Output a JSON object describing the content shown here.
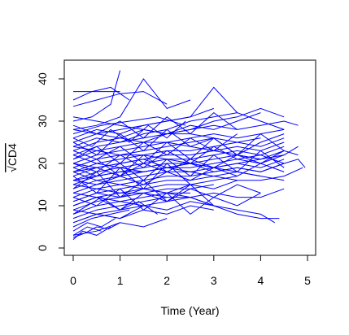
{
  "chart_data": {
    "type": "line",
    "title": "",
    "xlabel": "Time (Year)",
    "ylabel": "√CD4",
    "xlim": [
      0,
      5
    ],
    "ylim": [
      0,
      40
    ],
    "x_ticks": [
      "0",
      "1",
      "2",
      "3",
      "4",
      "5"
    ],
    "y_ticks": [
      "0",
      "10",
      "20",
      "30",
      "40"
    ],
    "grid": false,
    "legend": "none",
    "line_color": "#0000ff",
    "series": [
      {
        "x": [
          0.0,
          0.3,
          0.7,
          1.0
        ],
        "y": [
          37,
          37,
          37,
          37
        ]
      },
      {
        "x": [
          0.0,
          0.5,
          1.0,
          1.5,
          2.0
        ],
        "y": [
          33.5,
          35,
          36.5,
          37,
          34
        ]
      },
      {
        "x": [
          0.0,
          0.4,
          0.8,
          1.2
        ],
        "y": [
          35,
          37,
          38,
          35
        ]
      },
      {
        "x": [
          0.0,
          0.4,
          0.8,
          1.0
        ],
        "y": [
          30,
          31,
          34,
          42
        ]
      },
      {
        "x": [
          0.0,
          0.5,
          1.0,
          1.5,
          2.0,
          2.5
        ],
        "y": [
          28,
          29,
          31,
          40,
          33,
          35
        ]
      },
      {
        "x": [
          0.0,
          0.6,
          1.2,
          1.8,
          2.4
        ],
        "y": [
          27,
          29,
          30,
          31,
          29
        ]
      },
      {
        "x": [
          0.0,
          0.5,
          1.0,
          1.5,
          2.0,
          2.5,
          3.0
        ],
        "y": [
          25,
          27,
          28,
          29,
          30,
          31,
          33
        ]
      },
      {
        "x": [
          0.0,
          0.5,
          1.0,
          1.5,
          2.0,
          2.5,
          3.0,
          3.5
        ],
        "y": [
          26,
          28,
          27,
          29,
          30,
          31,
          38,
          32
        ]
      },
      {
        "x": [
          0.0,
          0.5,
          1.0,
          1.5,
          2.0,
          2.5,
          3.0,
          3.5,
          4.0,
          4.5
        ],
        "y": [
          24,
          26,
          25,
          27,
          28,
          30,
          31,
          32,
          30,
          28
        ]
      },
      {
        "x": [
          0.0,
          0.5,
          1.0,
          1.5,
          2.0,
          2.5,
          3.0,
          3.5,
          4.0,
          4.5
        ],
        "y": [
          22,
          24,
          25,
          26,
          27,
          28,
          30,
          31,
          33,
          31
        ]
      },
      {
        "x": [
          0.0,
          0.5,
          1.0,
          1.5,
          2.0,
          2.5,
          3.0,
          3.5,
          4.0
        ],
        "y": [
          23,
          25,
          26,
          28,
          27,
          29,
          28,
          30,
          32
        ]
      },
      {
        "x": [
          0.0,
          0.5,
          1.0,
          1.5,
          2.0,
          2.5,
          3.0,
          3.5,
          4.0,
          4.5,
          4.8
        ],
        "y": [
          21,
          23,
          24,
          25,
          27,
          28,
          29,
          28,
          29,
          30,
          29
        ]
      },
      {
        "x": [
          0.0,
          0.5,
          1.0,
          1.5,
          2.0,
          2.5,
          3.0,
          3.5,
          4.0,
          4.5
        ],
        "y": [
          20,
          22,
          23,
          24,
          25,
          26,
          27,
          26,
          27,
          28
        ]
      },
      {
        "x": [
          0.0,
          0.5,
          1.0,
          1.5,
          2.0,
          2.5,
          3.0,
          3.5,
          4.0
        ],
        "y": [
          19,
          21,
          22,
          23,
          24,
          25,
          26,
          25,
          26
        ]
      },
      {
        "x": [
          0.0,
          0.5,
          1.0,
          1.5,
          2.0,
          2.5,
          3.0,
          3.5,
          4.0,
          4.5
        ],
        "y": [
          18,
          20,
          21,
          22,
          23,
          23,
          24,
          25,
          24,
          26
        ]
      },
      {
        "x": [
          0.0,
          0.5,
          1.0,
          1.5,
          2.0,
          2.5,
          3.0,
          3.5,
          4.0,
          4.5
        ],
        "y": [
          17,
          19,
          20,
          21,
          22,
          22,
          23,
          24,
          23,
          25
        ]
      },
      {
        "x": [
          0.0,
          0.5,
          1.0,
          1.5,
          2.0,
          2.5,
          3.0,
          3.5,
          4.0,
          4.5
        ],
        "y": [
          16,
          18,
          19,
          20,
          21,
          21,
          22,
          23,
          22,
          24
        ]
      },
      {
        "x": [
          0.0,
          0.5,
          1.0,
          1.5,
          2.0,
          2.5,
          3.0,
          3.5,
          4.0,
          4.5
        ],
        "y": [
          15,
          17,
          18,
          19,
          20,
          20,
          21,
          22,
          21,
          23
        ]
      },
      {
        "x": [
          0.0,
          0.5,
          1.0,
          1.5,
          2.0,
          2.5,
          3.0,
          3.5,
          4.0,
          4.5
        ],
        "y": [
          14,
          16,
          17,
          18,
          19,
          19,
          20,
          21,
          20,
          22
        ]
      },
      {
        "x": [
          0.0,
          0.5,
          1.0,
          1.5,
          2.0,
          2.5,
          3.0,
          3.5,
          4.0,
          4.5
        ],
        "y": [
          13,
          15,
          16,
          17,
          18,
          18,
          19,
          20,
          19,
          21
        ]
      },
      {
        "x": [
          0.0,
          0.5,
          1.0,
          1.5,
          2.0,
          2.5,
          3.0,
          3.5,
          4.0,
          4.5
        ],
        "y": [
          12,
          14,
          15,
          16,
          17,
          17,
          18,
          19,
          18,
          20
        ]
      },
      {
        "x": [
          0.0,
          0.5,
          1.0,
          1.5,
          2.0,
          2.5,
          3.0,
          3.5,
          4.0
        ],
        "y": [
          11,
          13,
          14,
          15,
          16,
          16,
          17,
          18,
          17
        ]
      },
      {
        "x": [
          0.0,
          0.5,
          1.0,
          1.5,
          2.0,
          2.5,
          3.0,
          3.5
        ],
        "y": [
          10,
          12,
          13,
          14,
          15,
          15,
          16,
          17
        ]
      },
      {
        "x": [
          0.0,
          0.5,
          1.0,
          1.5,
          2.0,
          2.5,
          3.0
        ],
        "y": [
          9,
          11,
          12,
          13,
          14,
          14,
          15
        ]
      },
      {
        "x": [
          0.0,
          0.5,
          1.0,
          1.5,
          2.0,
          2.5
        ],
        "y": [
          8,
          10,
          11,
          12,
          13,
          13
        ]
      },
      {
        "x": [
          0.0,
          0.5,
          1.0,
          1.5,
          2.0
        ],
        "y": [
          7,
          9,
          10,
          11,
          12
        ]
      },
      {
        "x": [
          0.0,
          0.5,
          1.0,
          1.5
        ],
        "y": [
          6,
          8,
          9,
          10
        ]
      },
      {
        "x": [
          0.0,
          0.4,
          0.8,
          1.2
        ],
        "y": [
          5,
          7,
          8,
          9
        ]
      },
      {
        "x": [
          0.0,
          0.3,
          0.6,
          0.9
        ],
        "y": [
          4,
          6,
          5,
          7
        ]
      },
      {
        "x": [
          0.0,
          0.3,
          0.6
        ],
        "y": [
          3,
          5,
          4
        ]
      },
      {
        "x": [
          0.0,
          0.2,
          0.5,
          0.8
        ],
        "y": [
          2,
          4,
          3,
          5
        ]
      },
      {
        "x": [
          0.0,
          0.25,
          0.5,
          0.75,
          1.0
        ],
        "y": [
          2.5,
          3.5,
          5,
          4.5,
          6
        ]
      },
      {
        "x": [
          0.0,
          0.5,
          1.0,
          1.5,
          2.0
        ],
        "y": [
          3,
          4,
          6,
          5,
          7
        ]
      },
      {
        "x": [
          0.0,
          0.5,
          1.0,
          1.5,
          2.0,
          2.5,
          3.0
        ],
        "y": [
          9,
          8,
          7,
          10,
          9,
          11,
          10
        ]
      },
      {
        "x": [
          0.0,
          0.5,
          1.0,
          1.5,
          2.0,
          2.5,
          3.0,
          3.5,
          4.0,
          4.3
        ],
        "y": [
          13,
          12,
          11,
          10,
          11,
          12,
          10,
          9,
          8,
          6
        ]
      },
      {
        "x": [
          0.0,
          0.5,
          1.0,
          1.5,
          2.0,
          2.5,
          3.0,
          3.5,
          4.0,
          4.4
        ],
        "y": [
          18,
          16,
          15,
          14,
          13,
          12,
          10,
          8,
          7,
          7
        ]
      },
      {
        "x": [
          0.0,
          0.5,
          1.0,
          1.5,
          2.0,
          2.5,
          3.0,
          3.5,
          4.0,
          4.5,
          4.9
        ],
        "y": [
          20,
          19,
          20,
          21,
          19,
          18,
          17,
          16,
          16,
          17,
          19
        ]
      },
      {
        "x": [
          0.0,
          0.5,
          1.0,
          1.5,
          2.0,
          2.5,
          3.0,
          3.5,
          4.0,
          4.5,
          4.8,
          4.95
        ],
        "y": [
          22,
          20,
          19,
          18,
          19,
          20,
          18,
          19,
          18,
          20,
          21,
          19
        ]
      },
      {
        "x": [
          0.0,
          0.5,
          1.0,
          1.5,
          2.0,
          2.5,
          3.0,
          3.5,
          4.0,
          4.5,
          4.8
        ],
        "y": [
          16,
          17,
          18,
          18,
          19,
          20,
          19,
          20,
          21,
          22,
          24
        ]
      },
      {
        "x": [
          0.0,
          0.5,
          1.0,
          1.5,
          2.0,
          2.5,
          3.0,
          3.5,
          4.0,
          4.5
        ],
        "y": [
          15,
          14,
          13,
          13,
          12,
          12,
          13,
          12,
          12,
          14
        ]
      },
      {
        "x": [
          0.0,
          0.5,
          1.0,
          1.5,
          2.0,
          2.5,
          3.0,
          3.5,
          4.0,
          4.5
        ],
        "y": [
          24,
          23,
          22,
          22,
          21,
          20,
          19,
          18,
          17,
          16
        ]
      },
      {
        "x": [
          0.0,
          0.5,
          1.0,
          1.5,
          2.0,
          2.5,
          3.0,
          3.5,
          4.0
        ],
        "y": [
          28,
          27,
          26,
          25,
          25,
          24,
          23,
          22,
          21
        ]
      },
      {
        "x": [
          0.0,
          0.5,
          1.0,
          1.5,
          2.0,
          2.5,
          3.0
        ],
        "y": [
          31,
          30,
          29,
          28,
          27,
          27,
          26
        ]
      },
      {
        "x": [
          0.0,
          0.5,
          1.0,
          1.5,
          2.0
        ],
        "y": [
          19,
          21,
          17,
          22,
          18
        ]
      },
      {
        "x": [
          0.0,
          0.5,
          1.0,
          1.5,
          2.0,
          2.5,
          3.0
        ],
        "y": [
          14,
          18,
          12,
          16,
          11,
          15,
          10
        ]
      },
      {
        "x": [
          0.0,
          0.5,
          1.0,
          1.5,
          2.0,
          2.5
        ],
        "y": [
          17,
          13,
          19,
          14,
          20,
          15
        ]
      },
      {
        "x": [
          0.0,
          0.5,
          1.0,
          1.5,
          2.0,
          2.5,
          3.0,
          3.5
        ],
        "y": [
          21,
          24,
          20,
          25,
          22,
          26,
          23,
          27
        ]
      },
      {
        "x": [
          0.0,
          0.5,
          1.0,
          1.5,
          2.0,
          2.5,
          3.0,
          3.5,
          4.0
        ],
        "y": [
          12,
          10,
          14,
          9,
          13,
          8,
          12,
          10,
          13
        ]
      },
      {
        "x": [
          0.0,
          0.5,
          1.0,
          1.5,
          2.0,
          2.5,
          3.0,
          3.5,
          4.0,
          4.5
        ],
        "y": [
          25,
          22,
          27,
          23,
          28,
          24,
          26,
          22,
          25,
          27
        ]
      },
      {
        "x": [
          0.0,
          0.5,
          1.0,
          1.5,
          2.0,
          2.5,
          3.0,
          3.5,
          4.0,
          4.5
        ],
        "y": [
          19,
          17,
          20,
          16,
          21,
          17,
          22,
          18,
          23,
          19
        ]
      },
      {
        "x": [
          0.0,
          0.5,
          1.0,
          1.5,
          2.0,
          2.5,
          3.0,
          3.5,
          4.0
        ],
        "y": [
          10,
          12,
          9,
          13,
          11,
          14,
          12,
          15,
          13
        ]
      },
      {
        "x": [
          0.0,
          0.3,
          0.6,
          1.0,
          1.4,
          1.8
        ],
        "y": [
          8,
          10,
          12,
          9,
          11,
          8
        ]
      },
      {
        "x": [
          0.0,
          0.4,
          0.8,
          1.2,
          1.6,
          2.0,
          2.4
        ],
        "y": [
          26,
          24,
          28,
          25,
          29,
          26,
          30
        ]
      },
      {
        "x": [
          0.0,
          0.5,
          1.0,
          1.5,
          2.0,
          2.5,
          3.0,
          3.5
        ],
        "y": [
          29,
          27,
          30,
          26,
          31,
          27,
          32,
          28
        ]
      },
      {
        "x": [
          0.0,
          0.5,
          1.0,
          1.5,
          2.0,
          2.5,
          3.0,
          3.5,
          4.0,
          4.5
        ],
        "y": [
          16,
          15,
          17,
          15,
          18,
          16,
          19,
          17,
          20,
          18
        ]
      },
      {
        "x": [
          0.0,
          0.5,
          1.0,
          1.5,
          2.0,
          2.5,
          3.0,
          3.5,
          4.0,
          4.5
        ],
        "y": [
          23,
          21,
          24,
          20,
          25,
          21,
          26,
          22,
          27,
          23
        ]
      },
      {
        "x": [
          0.0,
          0.5,
          1.0,
          1.5,
          2.0,
          2.5,
          3.0,
          3.5
        ],
        "y": [
          11,
          13,
          12,
          14,
          13,
          15,
          14,
          16
        ]
      },
      {
        "x": [
          0.0,
          0.5,
          1.0,
          1.5,
          2.0,
          2.5,
          3.0
        ],
        "y": [
          6,
          8,
          7,
          9,
          8,
          10,
          9
        ]
      },
      {
        "x": [
          0.0,
          0.5,
          1.0,
          1.5,
          2.0,
          2.5,
          3.0,
          3.5,
          4.0,
          4.5
        ],
        "y": [
          20,
          18,
          22,
          19,
          23,
          20,
          24,
          21,
          22,
          20
        ]
      },
      {
        "x": [
          0.0,
          0.5,
          1.0,
          1.5,
          2.0,
          2.5,
          3.0,
          3.5,
          4.0,
          4.5,
          4.8
        ],
        "y": [
          18,
          19,
          17,
          20,
          18,
          21,
          19,
          22,
          20,
          23,
          22
        ]
      }
    ]
  }
}
